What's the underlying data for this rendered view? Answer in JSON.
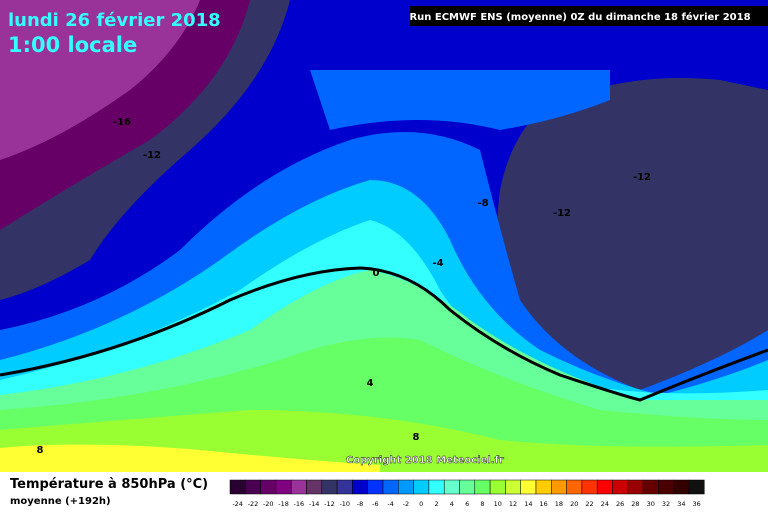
{
  "header": {
    "date": "lundi 26 février 2018",
    "time": "1:00 locale",
    "run": "Run ECMWF ENS (moyenne) 0Z du dimanche 18 février 2018"
  },
  "map": {
    "labels": [
      "-16",
      "-12",
      "-12",
      "-8",
      "-12",
      "-4",
      "0",
      "4",
      "8",
      "8"
    ],
    "copyright": "Copyright 2018 Meteociel.fr"
  },
  "footer": {
    "title": "Température à 850hPa (°C)",
    "subtitle": "moyenne  (+192h)"
  },
  "legend": {
    "ticks": [
      "-24",
      "-22",
      "-20",
      "-18",
      "-16",
      "-14",
      "-12",
      "-10",
      "-8",
      "-6",
      "-4",
      "-2",
      "0",
      "2",
      "4",
      "6",
      "8",
      "10",
      "12",
      "14",
      "16",
      "18",
      "20",
      "22",
      "24",
      "26",
      "28",
      "30",
      "32",
      "34",
      "36"
    ],
    "colors": [
      "#2a0030",
      "#4a0050",
      "#660066",
      "#800080",
      "#993399",
      "#663366",
      "#333366",
      "#333399",
      "#0000cc",
      "#0033ff",
      "#0066ff",
      "#0099ff",
      "#00ccff",
      "#33ffff",
      "#66ffcc",
      "#66ff99",
      "#66ff66",
      "#99ff33",
      "#ccff33",
      "#ffff33",
      "#ffcc00",
      "#ff9900",
      "#ff6600",
      "#ff3300",
      "#ff0000",
      "#cc0000",
      "#990000",
      "#660000",
      "#4a0000",
      "#330000",
      "#111111"
    ]
  }
}
